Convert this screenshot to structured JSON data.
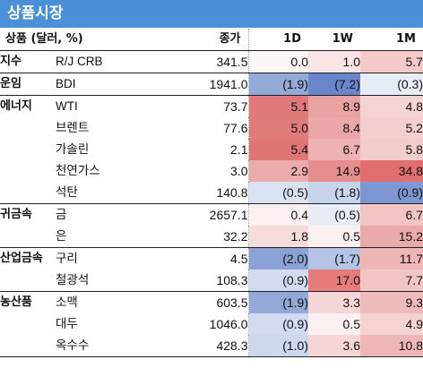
{
  "title": "상품시장",
  "header": {
    "category": "상품 (달러, %)",
    "price": "종가",
    "d1": "1D",
    "w1": "1W",
    "m1": "1M"
  },
  "rows": [
    {
      "cat": "지수",
      "name": "R/J CRB",
      "price": "341.5",
      "d1": "0.0",
      "w1": "1.0",
      "m1": "5.7"
    },
    {
      "cat": "운임",
      "name": "BDI",
      "price": "1941.0",
      "d1": "(1.9)",
      "w1": "(7.2)",
      "m1": "(0.3)"
    },
    {
      "cat": "에너지",
      "name": "WTI",
      "price": "73.7",
      "d1": "5.1",
      "w1": "8.9",
      "m1": "4.8"
    },
    {
      "cat": "",
      "name": "브렌트",
      "price": "77.6",
      "d1": "5.0",
      "w1": "8.4",
      "m1": "5.2"
    },
    {
      "cat": "",
      "name": "가솔린",
      "price": "2.1",
      "d1": "5.4",
      "w1": "6.7",
      "m1": "5.8"
    },
    {
      "cat": "",
      "name": "천연가스",
      "price": "3.0",
      "d1": "2.9",
      "w1": "14.9",
      "m1": "34.8"
    },
    {
      "cat": "",
      "name": "석탄",
      "price": "140.8",
      "d1": "(0.5)",
      "w1": "(1.8)",
      "m1": "(0.9)"
    },
    {
      "cat": "귀금속",
      "name": "금",
      "price": "2657.1",
      "d1": "0.4",
      "w1": "(0.5)",
      "m1": "6.7"
    },
    {
      "cat": "",
      "name": "은",
      "price": "32.2",
      "d1": "1.8",
      "w1": "0.5",
      "m1": "15.2"
    },
    {
      "cat": "산업금속",
      "name": "구리",
      "price": "4.5",
      "d1": "(2.0)",
      "w1": "(1.7)",
      "m1": "11.7"
    },
    {
      "cat": "",
      "name": "철광석",
      "price": "108.3",
      "d1": "(0.9)",
      "w1": "17.0",
      "m1": "7.7"
    },
    {
      "cat": "농산품",
      "name": "소맥",
      "price": "603.5",
      "d1": "(1.9)",
      "w1": "3.3",
      "m1": "9.3"
    },
    {
      "cat": "",
      "name": "대두",
      "price": "1046.0",
      "d1": "(0.9)",
      "w1": "0.5",
      "m1": "4.9"
    },
    {
      "cat": "",
      "name": "옥수수",
      "price": "428.3",
      "d1": "(1.0)",
      "w1": "3.6",
      "m1": "10.8"
    }
  ],
  "cell_colors": [
    [
      "#fcf6f6",
      "#f9e5e5",
      "#f3c9c9"
    ],
    [
      "#93a9d8",
      "#6a86cb",
      "#e7ecf6"
    ],
    [
      "#e07a7a",
      "#eaa3a3",
      "#f5d3d3"
    ],
    [
      "#e07b7b",
      "#eba7a7",
      "#f4cfcf"
    ],
    [
      "#df7676",
      "#eeb2b2",
      "#f3cccc"
    ],
    [
      "#ecacac",
      "#e68d8d",
      "#e06e6e"
    ],
    [
      "#dae2f2",
      "#c8d3ec",
      "#7e97d3"
    ],
    [
      "#fbf0f0",
      "#e7ecf6",
      "#f2c4c4"
    ],
    [
      "#f6dcdc",
      "#fbf0f0",
      "#ebaaaa"
    ],
    [
      "#8aa2d6",
      "#b5c4e6",
      "#eeb5b5"
    ],
    [
      "#d2dbef",
      "#e67c7c",
      "#f2c6c6"
    ],
    [
      "#93a9d8",
      "#f5d6d6",
      "#efbaba"
    ],
    [
      "#d2dbef",
      "#fbf0f0",
      "#f5d3d3"
    ],
    [
      "#cdd7ee",
      "#f5d5d5",
      "#eeb6b6"
    ]
  ],
  "group_starts": [
    0,
    1,
    2,
    7,
    9,
    11
  ]
}
